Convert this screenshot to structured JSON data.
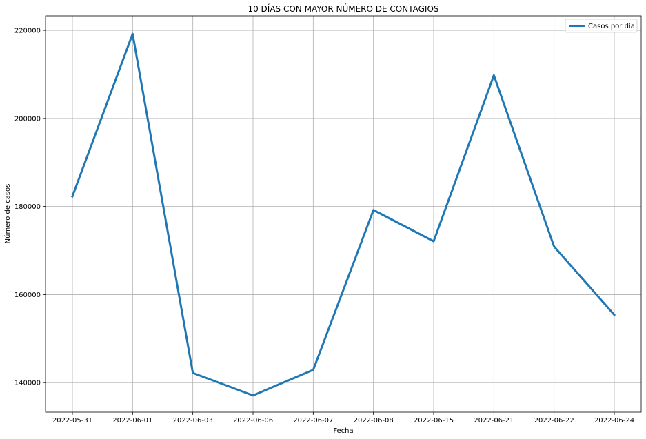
{
  "chart_data": {
    "type": "line",
    "title": "10 DÍAS CON MAYOR NÚMERO DE CONTAGIOS",
    "xlabel": "Fecha",
    "ylabel": "Número de casos",
    "categories": [
      "2022-05-31",
      "2022-06-01",
      "2022-06-03",
      "2022-06-06",
      "2022-06-07",
      "2022-06-08",
      "2022-06-15",
      "2022-06-21",
      "2022-06-22",
      "2022-06-24"
    ],
    "series": [
      {
        "name": "Casos por día",
        "color": "#1f77b4",
        "values": [
          182300,
          219200,
          142200,
          137100,
          142900,
          179200,
          172100,
          209800,
          170900,
          155400
        ]
      }
    ],
    "yticks": [
      140000,
      160000,
      180000,
      200000,
      220000
    ],
    "ylim": [
      133300,
      223300
    ],
    "grid": true,
    "legend_position": "top-right"
  }
}
